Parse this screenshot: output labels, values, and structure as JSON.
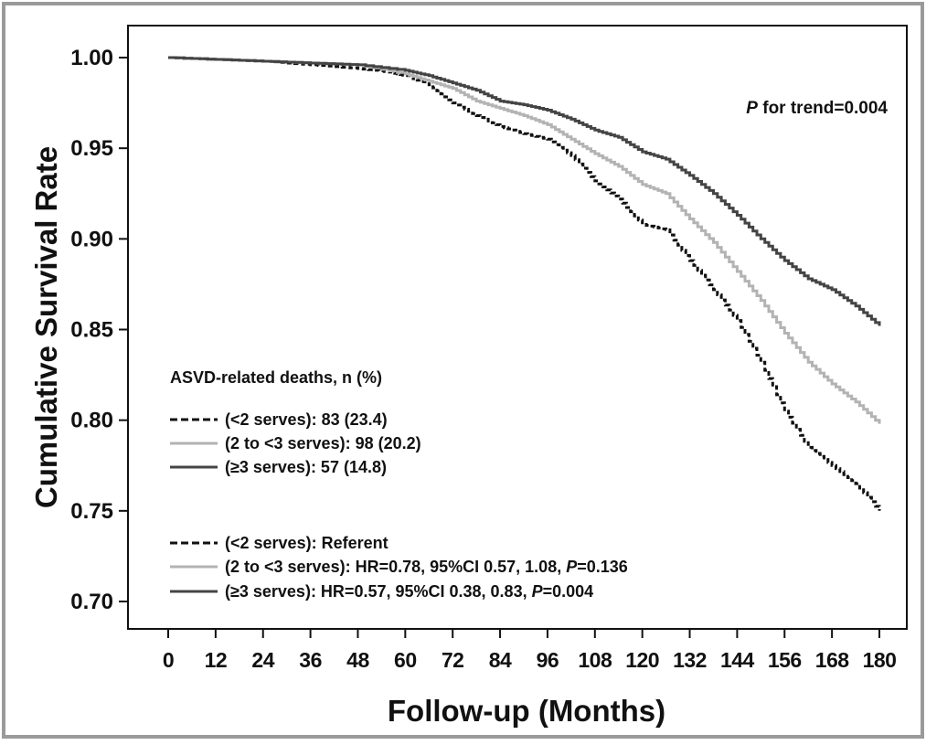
{
  "chart_data": {
    "type": "line",
    "title": "",
    "xlabel": "Follow-up (Months)",
    "ylabel": "Cumulative Survival Rate",
    "xlim": [
      0,
      180
    ],
    "ylim": [
      0.69,
      1.01
    ],
    "x_ticks": [
      "0",
      "12",
      "24",
      "36",
      "48",
      "60",
      "72",
      "84",
      "96",
      "108",
      "120",
      "132",
      "144",
      "156",
      "168",
      "180"
    ],
    "y_ticks": [
      "1.00",
      "0.95",
      "0.90",
      "0.85",
      "0.80",
      "0.75",
      "0.70"
    ],
    "grid": false,
    "annotation": {
      "italic": "P",
      "text": " for trend=0.004"
    },
    "legend": {
      "placement": "lower-left",
      "title": "ASVD-related deaths, n (%)",
      "deaths": [
        "(<2 serves): 83 (23.4)",
        "(2 to <3 serves): 98 (20.2)",
        "(≥3 serves): 57 (14.8)"
      ],
      "hazard": [
        {
          "pre": "(<2 serves): Referent",
          "italic": "",
          "post": ""
        },
        {
          "pre": "(2 to <3 serves): HR=0.78, 95%CI 0.57, 1.08, ",
          "italic": "P",
          "post": "=0.136"
        },
        {
          "pre": "(≥3 serves): HR=0.57, 95%CI 0.38, 0.83, ",
          "italic": "P",
          "post": "=0.004"
        }
      ]
    },
    "series": [
      {
        "color": "#111111",
        "dash": "dashed",
        "points": [
          [
            0,
            1.0
          ],
          [
            12,
            0.999
          ],
          [
            24,
            0.998
          ],
          [
            36,
            0.996
          ],
          [
            48,
            0.994
          ],
          [
            56,
            0.992
          ],
          [
            60,
            0.99
          ],
          [
            66,
            0.985
          ],
          [
            72,
            0.975
          ],
          [
            78,
            0.968
          ],
          [
            84,
            0.962
          ],
          [
            90,
            0.958
          ],
          [
            96,
            0.955
          ],
          [
            102,
            0.946
          ],
          [
            108,
            0.932
          ],
          [
            114,
            0.922
          ],
          [
            120,
            0.908
          ],
          [
            126,
            0.905
          ],
          [
            132,
            0.888
          ],
          [
            138,
            0.872
          ],
          [
            144,
            0.855
          ],
          [
            150,
            0.832
          ],
          [
            156,
            0.805
          ],
          [
            162,
            0.785
          ],
          [
            168,
            0.775
          ],
          [
            174,
            0.765
          ],
          [
            180,
            0.75
          ]
        ]
      },
      {
        "color": "#b3b3b3",
        "dash": "solid",
        "points": [
          [
            0,
            1.0
          ],
          [
            12,
            0.999
          ],
          [
            24,
            0.998
          ],
          [
            36,
            0.997
          ],
          [
            48,
            0.996
          ],
          [
            60,
            0.991
          ],
          [
            66,
            0.987
          ],
          [
            72,
            0.983
          ],
          [
            78,
            0.976
          ],
          [
            84,
            0.972
          ],
          [
            90,
            0.968
          ],
          [
            96,
            0.963
          ],
          [
            102,
            0.955
          ],
          [
            108,
            0.947
          ],
          [
            114,
            0.94
          ],
          [
            120,
            0.93
          ],
          [
            126,
            0.925
          ],
          [
            132,
            0.911
          ],
          [
            138,
            0.898
          ],
          [
            144,
            0.882
          ],
          [
            150,
            0.866
          ],
          [
            156,
            0.848
          ],
          [
            162,
            0.832
          ],
          [
            168,
            0.82
          ],
          [
            174,
            0.81
          ],
          [
            180,
            0.798
          ]
        ]
      },
      {
        "color": "#444444",
        "dash": "solid",
        "points": [
          [
            0,
            1.0
          ],
          [
            12,
            0.999
          ],
          [
            24,
            0.998
          ],
          [
            36,
            0.997
          ],
          [
            48,
            0.996
          ],
          [
            60,
            0.993
          ],
          [
            66,
            0.99
          ],
          [
            72,
            0.986
          ],
          [
            78,
            0.982
          ],
          [
            84,
            0.976
          ],
          [
            90,
            0.974
          ],
          [
            96,
            0.971
          ],
          [
            102,
            0.966
          ],
          [
            108,
            0.96
          ],
          [
            114,
            0.956
          ],
          [
            120,
            0.948
          ],
          [
            126,
            0.944
          ],
          [
            132,
            0.935
          ],
          [
            138,
            0.925
          ],
          [
            144,
            0.913
          ],
          [
            150,
            0.9
          ],
          [
            156,
            0.888
          ],
          [
            162,
            0.878
          ],
          [
            168,
            0.872
          ],
          [
            174,
            0.863
          ],
          [
            180,
            0.852
          ]
        ]
      }
    ]
  }
}
